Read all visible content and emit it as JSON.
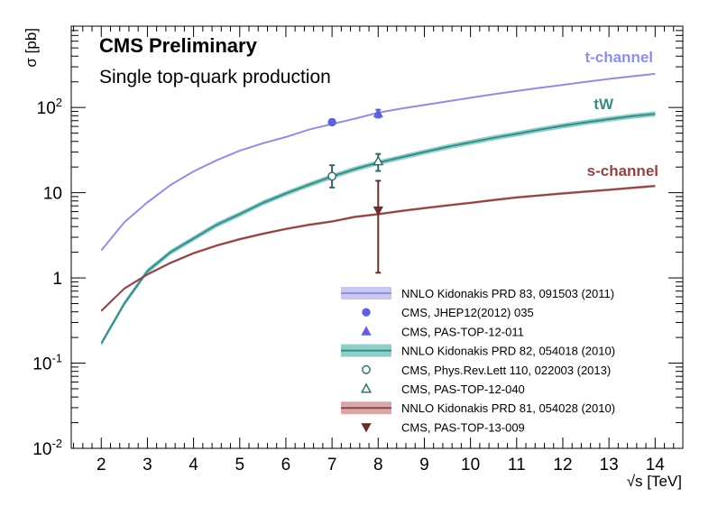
{
  "chart_data": {
    "type": "line",
    "title": "CMS Preliminary",
    "subtitle": "Single top-quark production",
    "xlabel": "√s [TeV]",
    "ylabel": "σ [pb]",
    "xlim": [
      1.35,
      14.6
    ],
    "ylim": [
      0.01,
      900
    ],
    "yscale": "log",
    "grid": false,
    "legend_position": "bottom-right",
    "x_ticks": [
      "2",
      "3",
      "4",
      "5",
      "6",
      "7",
      "8",
      "9",
      "10",
      "11",
      "12",
      "13",
      "14"
    ],
    "y_ticks": [
      {
        "value": 0.01,
        "base": "10",
        "exp": "-2"
      },
      {
        "value": 0.1,
        "base": "10",
        "exp": "-1"
      },
      {
        "value": 1,
        "base": "1",
        "exp": ""
      },
      {
        "value": 10,
        "base": "10",
        "exp": ""
      },
      {
        "value": 100,
        "base": "10",
        "exp": "2"
      }
    ],
    "series": [
      {
        "name": "t-channel",
        "label": "t-channel",
        "color": "#9090dd",
        "band_color": "#c8c8f2",
        "x": [
          2,
          2.5,
          3,
          3.5,
          4,
          4.5,
          5,
          5.5,
          6,
          6.5,
          7,
          7.5,
          8,
          8.5,
          9,
          9.5,
          10,
          10.5,
          11,
          11.5,
          12,
          12.5,
          13,
          13.5,
          14
        ],
        "y": [
          2.1,
          4.5,
          7.7,
          12.3,
          17.8,
          24.0,
          31.1,
          38.0,
          45.0,
          55.0,
          64.0,
          74.0,
          87.0,
          97.0,
          107,
          118,
          130,
          143,
          156,
          170,
          184,
          200,
          216,
          232,
          248
        ],
        "band": 0.02
      },
      {
        "name": "tW",
        "label": "tW",
        "color": "#3a8a86",
        "band_color": "#8fd0cc",
        "x": [
          2,
          2.5,
          3,
          3.5,
          4,
          4.5,
          5,
          5.5,
          6,
          6.5,
          7,
          7.5,
          8,
          8.5,
          9,
          9.5,
          10,
          10.5,
          11,
          11.5,
          12,
          12.5,
          13,
          13.5,
          14
        ],
        "y": [
          0.17,
          0.5,
          1.2,
          2.0,
          2.9,
          4.2,
          5.6,
          7.6,
          9.8,
          12.4,
          15.5,
          19.0,
          22.5,
          26.0,
          30.0,
          34.5,
          39.0,
          44.0,
          49.0,
          55.0,
          61.0,
          67.0,
          73.0,
          79.0,
          84.0
        ],
        "band": 0.07
      },
      {
        "name": "s-channel",
        "label": "s-channel",
        "color": "#8b4747",
        "band_color": "#d9a7a7",
        "x": [
          2,
          2.5,
          3,
          3.5,
          4,
          4.5,
          5,
          5.5,
          6,
          6.5,
          7,
          7.5,
          8,
          8.5,
          9,
          9.5,
          10,
          10.5,
          11,
          11.5,
          12,
          12.5,
          13,
          13.5,
          14
        ],
        "y": [
          0.41,
          0.75,
          1.1,
          1.5,
          1.95,
          2.4,
          2.85,
          3.3,
          3.75,
          4.2,
          4.6,
          5.2,
          5.6,
          6.1,
          6.6,
          7.1,
          7.6,
          8.2,
          8.8,
          9.3,
          9.8,
          10.3,
          10.8,
          11.4,
          12.0
        ],
        "band": 0.035
      }
    ],
    "measurements": [
      {
        "series": "t-channel",
        "x": 7,
        "y": 67.2,
        "ylo": 63.0,
        "yhi": 71.5,
        "marker": "circle-filled",
        "color": "#6060dd"
      },
      {
        "series": "t-channel",
        "x": 8,
        "y": 85.0,
        "ylo": 76.0,
        "yhi": 94.0,
        "marker": "triangle-up-filled",
        "color": "#6060dd"
      },
      {
        "series": "tW",
        "x": 7,
        "y": 15.6,
        "ylo": 11.5,
        "yhi": 21.0,
        "marker": "circle-open",
        "color": "#2c6966"
      },
      {
        "series": "tW",
        "x": 8,
        "y": 23.4,
        "ylo": 18.0,
        "yhi": 28.5,
        "marker": "triangle-up-open",
        "color": "#2c6966"
      },
      {
        "series": "s-channel",
        "x": 8,
        "y": 6.2,
        "ylo": 1.15,
        "yhi": 13.8,
        "marker": "triangle-down-filled",
        "color": "#6b2f2f"
      }
    ],
    "legend": [
      {
        "type": "band",
        "label": "NNLO Kidonakis PRD 83, 091503 (2011)",
        "color": "#9090dd",
        "band_color": "#c8c8f2"
      },
      {
        "type": "marker",
        "marker": "circle-filled",
        "label": "CMS, JHEP12(2012) 035",
        "color": "#6060dd"
      },
      {
        "type": "marker",
        "marker": "triangle-up-filled",
        "label": "CMS, PAS-TOP-12-011",
        "color": "#6060dd"
      },
      {
        "type": "band",
        "label": "NNLO Kidonakis PRD 82, 054018 (2010)",
        "color": "#3a8a86",
        "band_color": "#8fd0cc"
      },
      {
        "type": "marker",
        "marker": "circle-open",
        "label": "CMS, Phys.Rev.Lett 110, 022003 (2013)",
        "color": "#2c6966"
      },
      {
        "type": "marker",
        "marker": "triangle-up-open",
        "label": "CMS, PAS-TOP-12-040",
        "color": "#2c6966"
      },
      {
        "type": "band",
        "label": "NNLO Kidonakis PRD 81, 054028 (2010)",
        "color": "#8b4747",
        "band_color": "#d9a7a7"
      },
      {
        "type": "marker",
        "marker": "triangle-down-filled",
        "label": "CMS, PAS-TOP-13-009",
        "color": "#6b2f2f"
      }
    ]
  }
}
